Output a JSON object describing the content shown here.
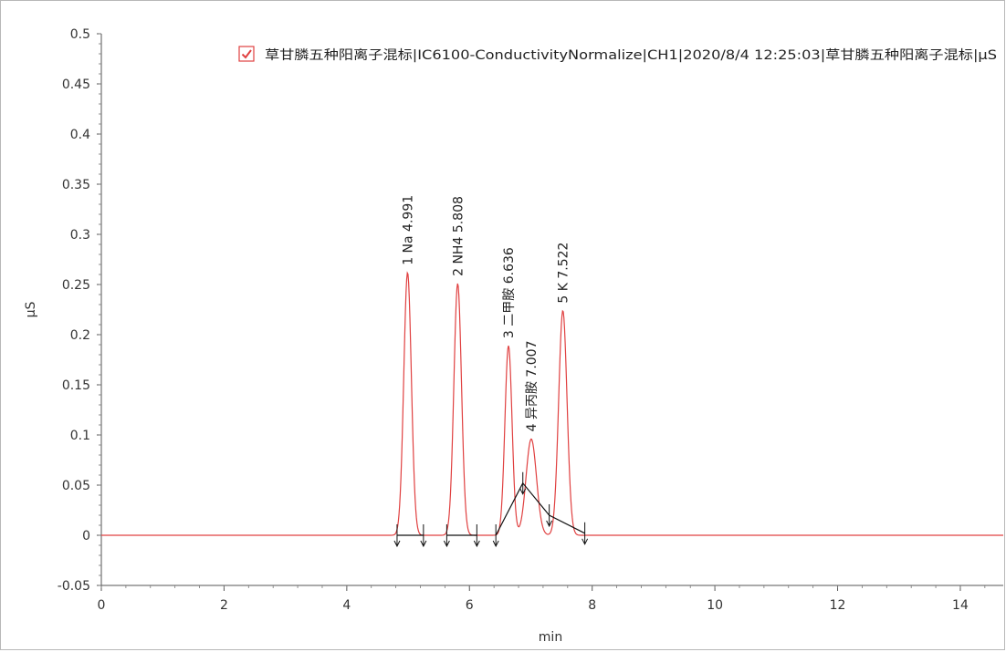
{
  "chart_data": {
    "type": "line",
    "xlabel": "min",
    "ylabel": "μS",
    "xlim": [
      0,
      14.7
    ],
    "ylim": [
      -0.05,
      0.5
    ],
    "x_ticks": [
      0,
      2,
      4,
      6,
      8,
      10,
      12,
      14
    ],
    "x_tick_labels": [
      "0",
      "2",
      "4",
      "6",
      "8",
      "10",
      "12",
      "14"
    ],
    "y_ticks": [
      -0.05,
      0,
      0.05,
      0.1,
      0.15,
      0.2,
      0.25,
      0.3,
      0.35,
      0.4,
      0.45,
      0.5
    ],
    "y_tick_labels": [
      "-0.05",
      "0",
      "0.05",
      "0.1",
      "0.15",
      "0.2",
      "0.25",
      "0.3",
      "0.35",
      "0.4",
      "0.45",
      "0.5"
    ],
    "grid": false,
    "legend_position": "top-right",
    "series": [
      {
        "name": "草甘膦五种阳离子混标|IC6100-ConductivityNormalize|CH1|2020/8/4 12:25:03|草甘膦五种阳离子混标|μS",
        "color": "#e04040",
        "baseline": 0.0,
        "peaks": [
          {
            "rt": 4.991,
            "height": 0.262,
            "sigma": 0.062
          },
          {
            "rt": 5.808,
            "height": 0.251,
            "sigma": 0.062
          },
          {
            "rt": 6.636,
            "height": 0.189,
            "sigma": 0.058
          },
          {
            "rt": 7.007,
            "height": 0.096,
            "sigma": 0.085
          },
          {
            "rt": 7.522,
            "height": 0.224,
            "sigma": 0.068
          }
        ]
      }
    ],
    "peak_labels": [
      {
        "text": "1 Na 4.991",
        "rt": 4.991,
        "y": 0.262
      },
      {
        "text": "2 NH4 5.808",
        "rt": 5.808,
        "y": 0.251
      },
      {
        "text": "3 二甲胺 6.636",
        "rt": 6.636,
        "y": 0.189
      },
      {
        "text": "4 异丙胺 7.007",
        "rt": 7.007,
        "y": 0.096
      },
      {
        "text": "5 K 7.522",
        "rt": 7.522,
        "y": 0.224
      }
    ],
    "integration_baseline": {
      "color": "#111111",
      "segments": [
        [
          [
            4.82,
            0.0
          ],
          [
            5.25,
            0.0
          ]
        ],
        [
          [
            5.63,
            0.0
          ],
          [
            6.12,
            0.0
          ]
        ],
        [
          [
            6.43,
            0.0
          ],
          [
            6.87,
            0.052
          ],
          [
            7.3,
            0.02
          ],
          [
            7.88,
            0.002
          ]
        ]
      ],
      "markers": [
        {
          "x": 4.82,
          "y": 0.0
        },
        {
          "x": 5.25,
          "y": 0.0
        },
        {
          "x": 5.63,
          "y": 0.0
        },
        {
          "x": 6.12,
          "y": 0.0
        },
        {
          "x": 6.43,
          "y": 0.0
        },
        {
          "x": 6.87,
          "y": 0.052
        },
        {
          "x": 7.3,
          "y": 0.02
        },
        {
          "x": 7.88,
          "y": 0.002
        }
      ]
    }
  }
}
